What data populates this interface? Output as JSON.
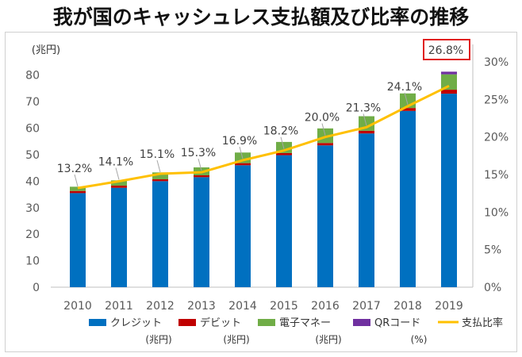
{
  "title": "我が国のキャッシュレス支払額及び比率の推移",
  "colors": {
    "credit": "#0070C0",
    "debit": "#C00000",
    "emoney": "#70AD47",
    "qr": "#7030A0",
    "ratio": "#FFC000",
    "highlight_box": "#E02020"
  },
  "chart_data": {
    "type": "bar",
    "stacked": true,
    "categories": [
      "2010",
      "2011",
      "2012",
      "2013",
      "2014",
      "2015",
      "2016",
      "2017",
      "2018",
      "2019"
    ],
    "series": [
      {
        "name": "クレジット",
        "unit": "(兆円)",
        "values": [
          35.5,
          37.5,
          40.0,
          41.5,
          46.0,
          49.8,
          53.5,
          58.0,
          66.5,
          73.0
        ]
      },
      {
        "name": "デビット",
        "unit": "(兆円)",
        "values": [
          0.8,
          0.8,
          0.7,
          0.7,
          0.8,
          0.8,
          0.9,
          1.0,
          1.1,
          1.5
        ]
      },
      {
        "name": "電子マネー",
        "unit": "(兆円)",
        "values": [
          1.6,
          2.0,
          2.6,
          3.0,
          4.0,
          4.2,
          5.5,
          5.5,
          5.5,
          5.8
        ]
      },
      {
        "name": "QRコード",
        "unit": "(%)",
        "values": [
          0,
          0,
          0,
          0,
          0,
          0,
          0,
          0,
          0,
          1.0
        ]
      }
    ],
    "ratio_series": {
      "name": "支払比率",
      "values": [
        13.2,
        14.1,
        15.1,
        15.3,
        16.9,
        18.2,
        20.0,
        21.3,
        24.1,
        26.8
      ],
      "labels": [
        "13.2%",
        "14.1%",
        "15.1%",
        "15.3%",
        "16.9%",
        "18.2%",
        "20.0%",
        "21.3%",
        "24.1%",
        "26.8%"
      ]
    },
    "y_left": {
      "unit_label": "(兆円)",
      "ticks": [
        "0",
        "10",
        "20",
        "30",
        "40",
        "50",
        "60",
        "70",
        "80"
      ],
      "range": [
        0,
        85
      ]
    },
    "y_right": {
      "ticks": [
        "0%",
        "5%",
        "10%",
        "15%",
        "20%",
        "25%",
        "30%"
      ],
      "range": [
        0,
        30
      ]
    },
    "highlight_index": 9,
    "legend_position": "bottom",
    "grid": false
  }
}
